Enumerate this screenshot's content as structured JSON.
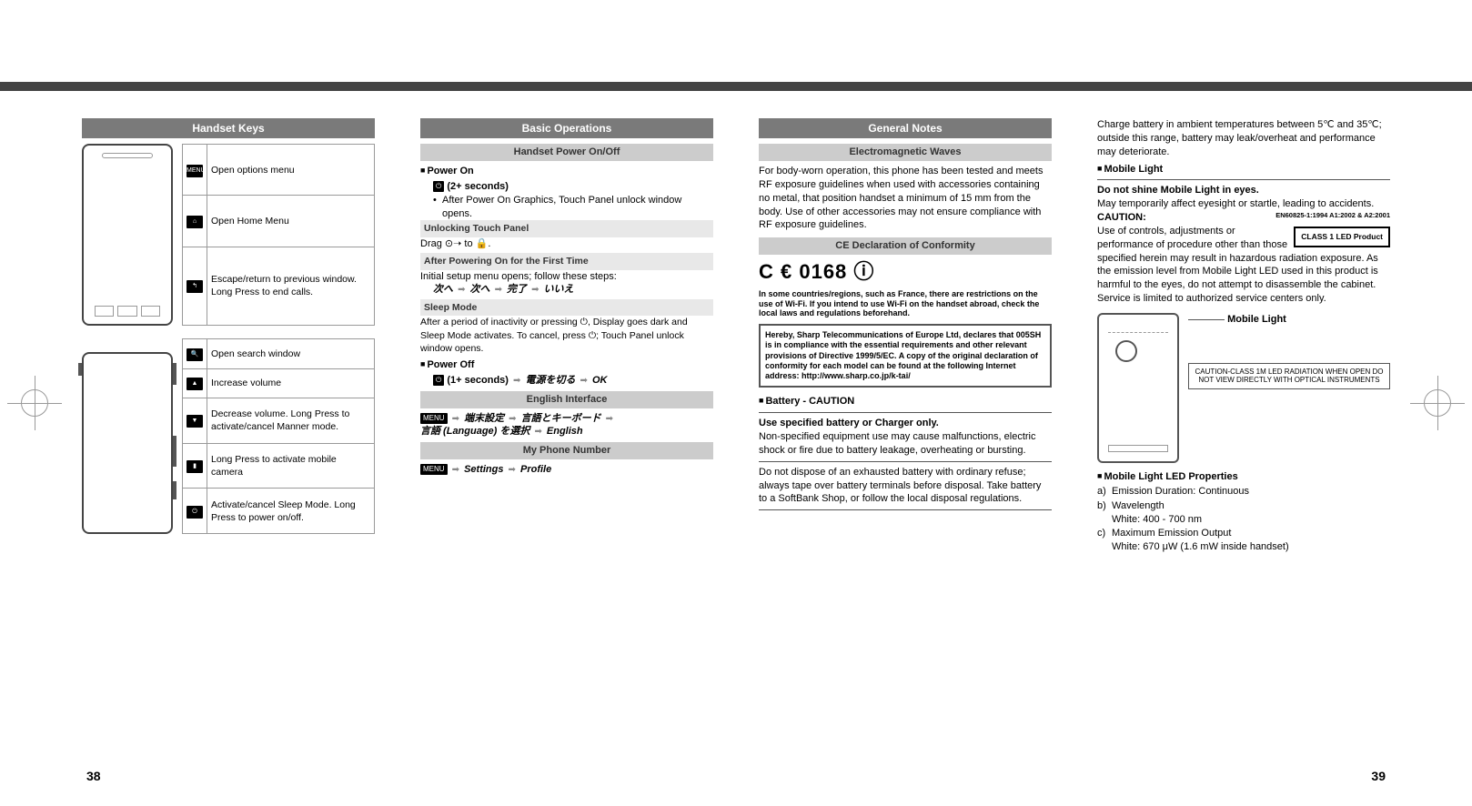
{
  "page_left": "38",
  "page_right": "39",
  "col1": {
    "header": "Handset Keys",
    "top_keys": [
      {
        "icon": "MENU",
        "desc": "Open options menu"
      },
      {
        "icon": "⌂",
        "desc": "Open Home Menu"
      },
      {
        "icon": "↰",
        "desc": "Escape/return to previous window. Long Press to end calls."
      }
    ],
    "bottom_keys": [
      {
        "icon": "🔍",
        "desc": "Open search window"
      },
      {
        "icon": "▲",
        "desc": "Increase volume"
      },
      {
        "icon": "▼",
        "desc": "Decrease volume. Long Press to activate/cancel Manner mode."
      },
      {
        "icon": "▮",
        "desc": "Long Press to activate mobile camera"
      },
      {
        "icon": "⏻",
        "desc": "Activate/cancel Sleep Mode. Long Press to power on/off."
      }
    ]
  },
  "col2": {
    "header": "Basic Operations",
    "sub1": "Handset Power On/Off",
    "power_on_h": "Power On",
    "power_on_step": "(2+ seconds)",
    "power_on_note": "After Power On Graphics, Touch Panel unlock window opens.",
    "unlock_h": "Unlocking Touch Panel",
    "unlock_t": "Drag ⊙➝ to 🔒.",
    "first_h": "After Powering On for the First Time",
    "first_t": "Initial setup menu opens; follow these steps:",
    "first_seq": [
      "次へ",
      "次へ",
      "完了",
      "いいえ"
    ],
    "sleep_h": "Sleep Mode",
    "sleep_t": "After a period of inactivity or pressing ⏻, Display goes dark and Sleep Mode activates. To cancel, press ⏻; Touch Panel unlock window opens.",
    "power_off_h": "Power Off",
    "power_off_seq_pre": "(1+ seconds)",
    "power_off_seq": [
      "電源を切る",
      "OK"
    ],
    "sub2": "English Interface",
    "eng_seq1": [
      "端末設定",
      "言語とキーボード"
    ],
    "eng_seq2_pre": "言語 (Language) を選択",
    "eng_seq2_end": "English",
    "sub3": "My Phone Number",
    "phone_seq": [
      "Settings",
      "Profile"
    ]
  },
  "col3": {
    "header": "General Notes",
    "sub1": "Electromagnetic Waves",
    "em_text": "For body-worn operation, this phone has been tested and meets RF exposure guidelines when used with accessories containing no metal, that position handset a minimum of 15 mm from the body. Use of other accessories may not ensure compliance with RF exposure guidelines.",
    "sub2": "CE Declaration of Conformity",
    "ce_mark": "C € 0168 ⓘ",
    "ce_small": "In some countries/regions, such as France, there are restrictions on the use of Wi-Fi. If you intend to use Wi-Fi on the handset abroad, check the local laws and regulations beforehand.",
    "decl": "Hereby, Sharp Telecommunications of Europe Ltd, declares that 005SH is in compliance with the essential requirements and other relevant provisions of Directive 1999/5/EC. A copy of the original declaration of conformity for each model can be found at the following Internet address: http://www.sharp.co.jp/k-tai/",
    "batt_h": "Battery - CAUTION",
    "batt_b1": "Use specified battery or Charger only.",
    "batt_t1": "Non-specified equipment use may cause malfunctions, electric shock or fire due to battery leakage, overheating or bursting.",
    "batt_t2": "Do not dispose of an exhausted battery with ordinary refuse; always tape over battery terminals before disposal. Take battery to a SoftBank Shop, or follow the local disposal regulations."
  },
  "col4": {
    "charge_t": "Charge battery in ambient temperatures between 5℃ and 35℃; outside this range, battery may leak/overheat and performance may deteriorate.",
    "ml_h": "Mobile Light",
    "ml_b1": "Do not shine Mobile Light in eyes.",
    "ml_t1": "May temporarily affect eyesight or startle, leading to accidents.",
    "caution_h": "CAUTION:",
    "en_std": "EN60825-1:1994 A1:2002 & A2:2001",
    "class1": "CLASS 1 LED Product",
    "caution_t": "Use of controls, adjustments or performance of procedure other than those specified herein may result in hazardous radiation exposure. As the emission level from Mobile Light LED used in this product is harmful to the eyes, do not attempt to disassemble the cabinet. Service is limited to authorized service centers only.",
    "ml_label": "Mobile Light",
    "ml_caution_box": "CAUTION-CLASS 1M LED RADIATION WHEN OPEN DO NOT VIEW DIRECTLY WITH OPTICAL INSTRUMENTS",
    "props_h": "Mobile Light LED Properties",
    "props": [
      {
        "l": "a)",
        "t": "Emission Duration: Continuous"
      },
      {
        "l": "b)",
        "t": "Wavelength",
        "sub": "White: 400 - 700 nm"
      },
      {
        "l": "c)",
        "t": "Maximum Emission Output",
        "sub": "White: 670 μW (1.6 mW inside handset)"
      }
    ]
  }
}
